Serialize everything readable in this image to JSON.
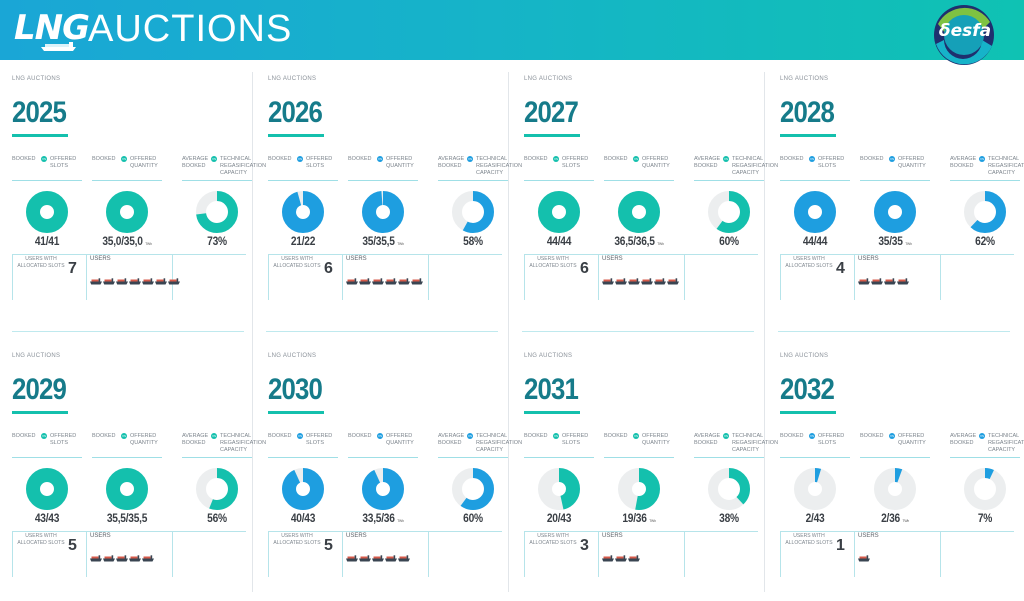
{
  "header": {
    "logo_text": "LNG",
    "title": "AUCTIONS",
    "brand": "δesfa"
  },
  "colors": {
    "teal": "#14c0ad",
    "blue": "#1e9ee0",
    "track": "#eceeef",
    "accent": "#167b8a"
  },
  "cards": [
    {
      "subtitle": "LNG AUCTIONS",
      "year": "2025",
      "color": "#14c0ad",
      "slots": {
        "l1": "BOOKED",
        "l2": "OFFERED SLOTS",
        "value": "41/41",
        "fraction": 1.0
      },
      "quantity": {
        "l1": "BOOKED",
        "l2": "OFFERED QUANTITY",
        "value": "35,0/35,0",
        "unit": "TWh",
        "fraction": 1.0
      },
      "capacity": {
        "l1": "AVERAGE BOOKED",
        "l2": "TECHNICAL REGASIFICATION CAPACITY",
        "value": "73%",
        "fraction": 0.73
      },
      "users_label": "USERS WITH ALLOCATED SLOTS",
      "users_count": "7",
      "users_title": "USERS",
      "ships": 7
    },
    {
      "subtitle": "LNG AUCTIONS",
      "year": "2026",
      "color": "#1e9ee0",
      "slots": {
        "l1": "BOOKED",
        "l2": "OFFERED SLOTS",
        "value": "21/22",
        "fraction": 0.955
      },
      "quantity": {
        "l1": "BOOKED",
        "l2": "OFFERED QUANTITY",
        "value": "35/35,5",
        "unit": "TWh",
        "fraction": 0.986
      },
      "capacity": {
        "l1": "AVERAGE BOOKED",
        "l2": "TECHNICAL REGASIFICATION CAPACITY",
        "value": "58%",
        "fraction": 0.58
      },
      "users_label": "USERS WITH ALLOCATED SLOTS",
      "users_count": "6",
      "users_title": "USERS",
      "ships": 6
    },
    {
      "subtitle": "LNG AUCTIONS",
      "year": "2027",
      "color": "#14c0ad",
      "slots": {
        "l1": "BOOKED",
        "l2": "OFFERED SLOTS",
        "value": "44/44",
        "fraction": 1.0
      },
      "quantity": {
        "l1": "BOOKED",
        "l2": "OFFERED QUANTITY",
        "value": "36,5/36,5",
        "unit": "TWh",
        "fraction": 1.0
      },
      "capacity": {
        "l1": "AVERAGE BOOKED",
        "l2": "TECHNICAL REGASIFICATION CAPACITY",
        "value": "60%",
        "fraction": 0.6
      },
      "users_label": "USERS WITH ALLOCATED SLOTS",
      "users_count": "6",
      "users_title": "USERS",
      "ships": 6
    },
    {
      "subtitle": "LNG AUCTIONS",
      "year": "2028",
      "color": "#1e9ee0",
      "slots": {
        "l1": "BOOKED",
        "l2": "OFFERED SLOTS",
        "value": "44/44",
        "fraction": 1.0
      },
      "quantity": {
        "l1": "BOOKED",
        "l2": "OFFERED QUANTITY",
        "value": "35/35",
        "unit": "TWh",
        "fraction": 1.0
      },
      "capacity": {
        "l1": "AVERAGE BOOKED",
        "l2": "TECHNICAL REGASIFICATION CAPACITY",
        "value": "62%",
        "fraction": 0.62
      },
      "users_label": "USERS WITH ALLOCATED SLOTS",
      "users_count": "4",
      "users_title": "USERS",
      "ships": 4
    },
    {
      "subtitle": "LNG AUCTIONS",
      "year": "2029",
      "color": "#14c0ad",
      "slots": {
        "l1": "BOOKED",
        "l2": "OFFERED SLOTS",
        "value": "43/43",
        "fraction": 1.0
      },
      "quantity": {
        "l1": "BOOKED",
        "l2": "OFFERED QUANTITY",
        "value": "35,5/35,5",
        "unit": "",
        "fraction": 1.0
      },
      "capacity": {
        "l1": "AVERAGE BOOKED",
        "l2": "TECHNICAL REGASIFICATION CAPACITY",
        "value": "56%",
        "fraction": 0.56
      },
      "users_label": "USERS WITH ALLOCATED SLOTS",
      "users_count": "5",
      "users_title": "USERS",
      "ships": 5
    },
    {
      "subtitle": "LNG AUCTIONS",
      "year": "2030",
      "color": "#1e9ee0",
      "slots": {
        "l1": "BOOKED",
        "l2": "OFFERED SLOTS",
        "value": "40/43",
        "fraction": 0.93
      },
      "quantity": {
        "l1": "BOOKED",
        "l2": "OFFERED QUANTITY",
        "value": "33,5/36",
        "unit": "TWh",
        "fraction": 0.93
      },
      "capacity": {
        "l1": "AVERAGE BOOKED",
        "l2": "TECHNICAL REGASIFICATION CAPACITY",
        "value": "60%",
        "fraction": 0.6
      },
      "users_label": "USERS WITH ALLOCATED SLOTS",
      "users_count": "5",
      "users_title": "USERS",
      "ships": 5
    },
    {
      "subtitle": "LNG AUCTIONS",
      "year": "2031",
      "color": "#14c0ad",
      "slots": {
        "l1": "BOOKED",
        "l2": "OFFERED SLOTS",
        "value": "20/43",
        "fraction": 0.465
      },
      "quantity": {
        "l1": "BOOKED",
        "l2": "OFFERED QUANTITY",
        "value": "19/36",
        "unit": "TWh",
        "fraction": 0.528
      },
      "capacity": {
        "l1": "AVERAGE BOOKED",
        "l2": "TECHNICAL REGASIFICATION CAPACITY",
        "value": "38%",
        "fraction": 0.38
      },
      "users_label": "USERS WITH ALLOCATED SLOTS",
      "users_count": "3",
      "users_title": "USERS",
      "ships": 3
    },
    {
      "subtitle": "LNG AUCTIONS",
      "year": "2032",
      "color": "#1e9ee0",
      "slots": {
        "l1": "BOOKED",
        "l2": "OFFERED SLOTS",
        "value": "2/43",
        "fraction": 0.047
      },
      "quantity": {
        "l1": "BOOKED",
        "l2": "OFFERED QUANTITY",
        "value": "2/36",
        "unit": "TWh",
        "fraction": 0.056
      },
      "capacity": {
        "l1": "AVERAGE BOOKED",
        "l2": "TECHNICAL REGASIFICATION CAPACITY",
        "value": "7%",
        "fraction": 0.07
      },
      "users_label": "USERS WITH ALLOCATED SLOTS",
      "users_count": "1",
      "users_title": "USERS",
      "ships": 1
    }
  ]
}
